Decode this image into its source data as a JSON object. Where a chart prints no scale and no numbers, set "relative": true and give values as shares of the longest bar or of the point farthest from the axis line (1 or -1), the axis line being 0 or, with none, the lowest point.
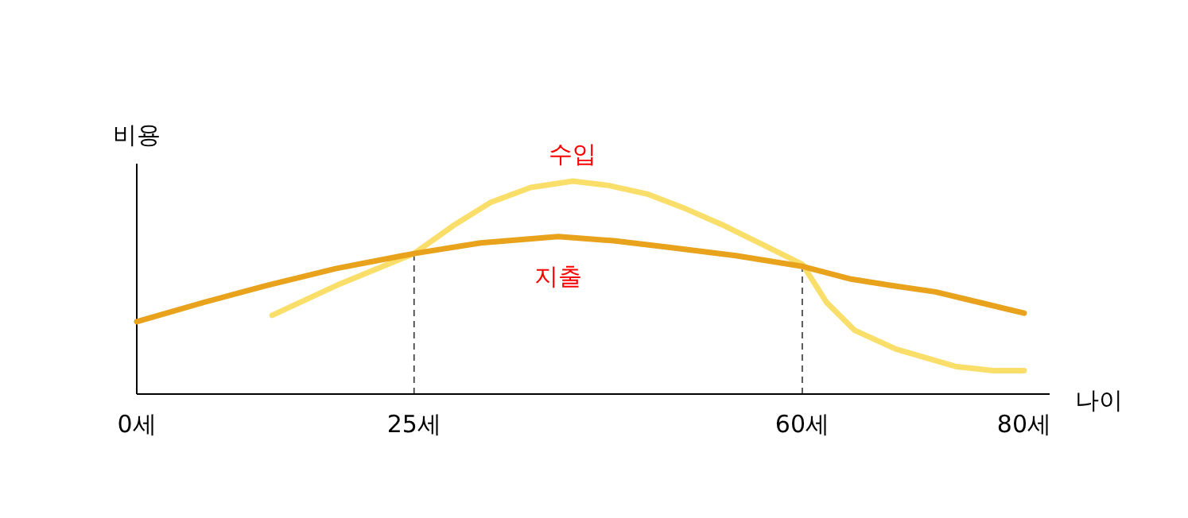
{
  "chart_data": {
    "type": "line",
    "relative": true,
    "xlabel": "나이",
    "ylabel": "비용",
    "xlim": [
      0,
      82.3
    ],
    "xticks": [
      {
        "value": 0,
        "label": "0세"
      },
      {
        "value": 25,
        "label": "25세"
      },
      {
        "value": 60,
        "label": "60세"
      },
      {
        "value": 80,
        "label": "80세"
      }
    ],
    "legend": false,
    "grid": false,
    "marker": "none",
    "line_style": "solid",
    "series": [
      {
        "name": "수입",
        "color": "#f9df6a",
        "x": [
          12.2,
          18,
          25,
          28.5,
          31.9,
          35.5,
          39.3,
          42.5,
          46,
          49.5,
          53,
          56.5,
          60,
          62.2,
          64.7,
          68.5,
          73.8,
          77.2,
          80
        ],
        "values": [
          0.37,
          0.51,
          0.66,
          0.79,
          0.9,
          0.97,
          1.0,
          0.98,
          0.94,
          0.87,
          0.79,
          0.7,
          0.61,
          0.43,
          0.3,
          0.21,
          0.13,
          0.11,
          0.11
        ]
      },
      {
        "name": "지출",
        "color": "#e8a21c",
        "x": [
          0,
          6,
          11.7,
          18,
          25,
          31,
          38,
          43,
          47.8,
          54,
          60,
          64.4,
          68,
          72,
          76,
          80
        ],
        "values": [
          0.34,
          0.43,
          0.51,
          0.59,
          0.66,
          0.71,
          0.74,
          0.72,
          0.69,
          0.65,
          0.6,
          0.54,
          0.51,
          0.48,
          0.43,
          0.38
        ]
      }
    ],
    "ref_lines": [
      {
        "axis": "x",
        "value": 25,
        "line_style": "dashed",
        "color": "#333333"
      },
      {
        "axis": "x",
        "value": 60,
        "line_style": "dashed",
        "color": "#333333"
      }
    ]
  }
}
